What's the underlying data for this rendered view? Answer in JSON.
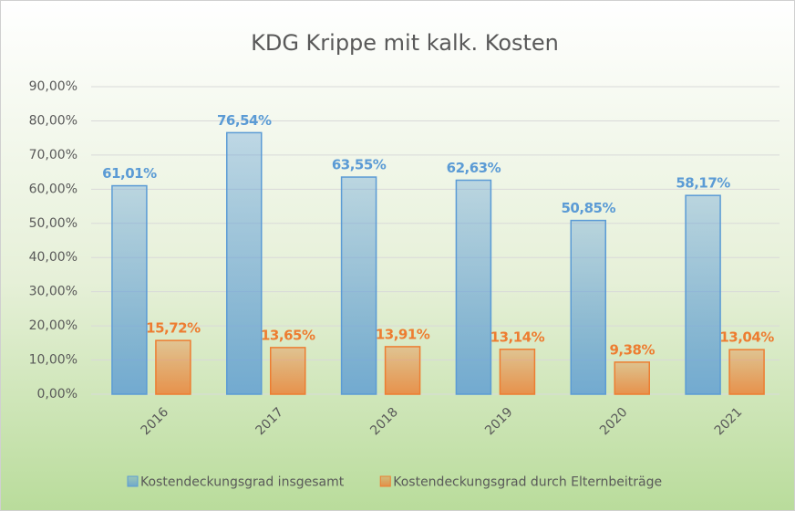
{
  "chart_data": {
    "type": "bar",
    "title": "KDG Krippe mit kalk. Kosten",
    "categories": [
      "2016",
      "2017",
      "2018",
      "2019",
      "2020",
      "2021"
    ],
    "series": [
      {
        "name": "Kostendeckungsgrad insgesamt",
        "color": "#5b9bd5",
        "values": [
          61.01,
          76.54,
          63.55,
          62.63,
          50.85,
          58.17
        ],
        "value_labels": [
          "61,01%",
          "76,54%",
          "63,55%",
          "62,63%",
          "50,85%",
          "58,17%"
        ]
      },
      {
        "name": "Kostendeckungsgrad durch Elternbeiträge",
        "color": "#ed7d31",
        "values": [
          15.72,
          13.65,
          13.91,
          13.14,
          9.38,
          13.04
        ],
        "value_labels": [
          "15,72%",
          "13,65%",
          "13,91%",
          "13,14%",
          "9,38%",
          "13,04%"
        ]
      }
    ],
    "ylim": [
      0,
      90
    ],
    "yticks": [
      {
        "value": 0,
        "label": "0,00%"
      },
      {
        "value": 10,
        "label": "10,00%"
      },
      {
        "value": 20,
        "label": "20,00%"
      },
      {
        "value": 30,
        "label": "30,00%"
      },
      {
        "value": 40,
        "label": "40,00%"
      },
      {
        "value": 50,
        "label": "50,00%"
      },
      {
        "value": 60,
        "label": "60,00%"
      },
      {
        "value": 70,
        "label": "70,00%"
      },
      {
        "value": 80,
        "label": "80,00%"
      },
      {
        "value": 90,
        "label": "90,00%"
      }
    ],
    "grid": true,
    "legend": "bottom"
  }
}
